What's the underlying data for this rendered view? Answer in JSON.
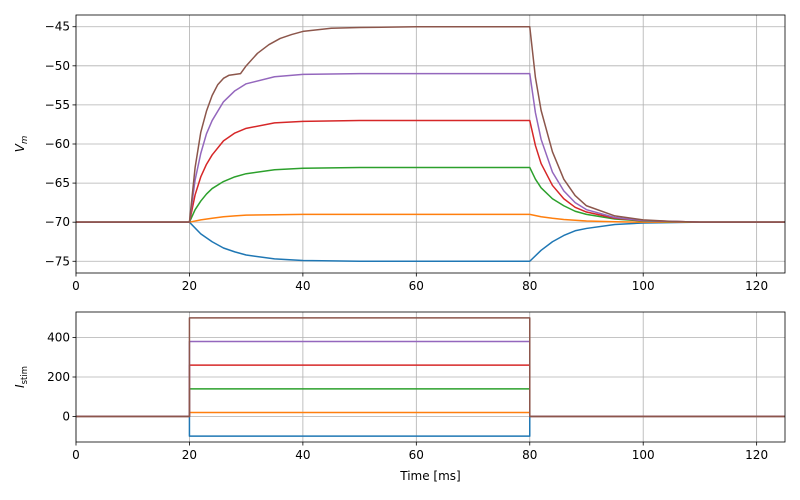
{
  "chart_data": [
    {
      "type": "line",
      "title": "",
      "xlabel": "",
      "ylabel_base": "V",
      "ylabel_sub": "m",
      "xlim": [
        0,
        125
      ],
      "ylim": [
        -76.5,
        -43.5
      ],
      "xticks": [
        0,
        20,
        40,
        60,
        80,
        100,
        120
      ],
      "yticks": [
        -75,
        -70,
        -65,
        -60,
        -55,
        -50,
        -45
      ],
      "ytick_labels": [
        "−75",
        "−70",
        "−65",
        "−60",
        "−55",
        "−50",
        "−45"
      ],
      "grid": true,
      "series": [
        {
          "color": "#1f77b4",
          "points": [
            [
              0,
              -70
            ],
            [
              20,
              -70
            ],
            [
              22,
              -71.5
            ],
            [
              24,
              -72.5
            ],
            [
              26,
              -73.3
            ],
            [
              28,
              -73.8
            ],
            [
              30,
              -74.2
            ],
            [
              35,
              -74.7
            ],
            [
              40,
              -74.9
            ],
            [
              50,
              -75
            ],
            [
              80,
              -75
            ],
            [
              82,
              -73.6
            ],
            [
              84,
              -72.5
            ],
            [
              86,
              -71.7
            ],
            [
              88,
              -71.1
            ],
            [
              90,
              -70.8
            ],
            [
              95,
              -70.3
            ],
            [
              100,
              -70.1
            ],
            [
              110,
              -70
            ],
            [
              125,
              -70
            ]
          ]
        },
        {
          "color": "#ff7f0e",
          "points": [
            [
              0,
              -70
            ],
            [
              20,
              -70
            ],
            [
              22,
              -69.7
            ],
            [
              24,
              -69.5
            ],
            [
              26,
              -69.3
            ],
            [
              28,
              -69.2
            ],
            [
              30,
              -69.1
            ],
            [
              35,
              -69.05
            ],
            [
              40,
              -69
            ],
            [
              80,
              -69
            ],
            [
              82,
              -69.3
            ],
            [
              84,
              -69.5
            ],
            [
              86,
              -69.65
            ],
            [
              88,
              -69.75
            ],
            [
              90,
              -69.85
            ],
            [
              95,
              -69.95
            ],
            [
              100,
              -70
            ],
            [
              125,
              -70
            ]
          ]
        },
        {
          "color": "#2ca02c",
          "points": [
            [
              0,
              -70
            ],
            [
              20,
              -70
            ],
            [
              21,
              -68.4
            ],
            [
              22,
              -67.3
            ],
            [
              23,
              -66.4
            ],
            [
              24,
              -65.7
            ],
            [
              26,
              -64.8
            ],
            [
              28,
              -64.2
            ],
            [
              30,
              -63.8
            ],
            [
              35,
              -63.3
            ],
            [
              40,
              -63.1
            ],
            [
              50,
              -63
            ],
            [
              80,
              -63
            ],
            [
              81,
              -64.5
            ],
            [
              82,
              -65.6
            ],
            [
              84,
              -67
            ],
            [
              86,
              -67.9
            ],
            [
              88,
              -68.6
            ],
            [
              90,
              -69
            ],
            [
              95,
              -69.6
            ],
            [
              100,
              -69.85
            ],
            [
              110,
              -70
            ],
            [
              125,
              -70
            ]
          ]
        },
        {
          "color": "#d62728",
          "points": [
            [
              0,
              -70
            ],
            [
              20,
              -70
            ],
            [
              21,
              -66.5
            ],
            [
              22,
              -64.2
            ],
            [
              23,
              -62.6
            ],
            [
              24,
              -61.4
            ],
            [
              26,
              -59.6
            ],
            [
              28,
              -58.6
            ],
            [
              30,
              -58
            ],
            [
              35,
              -57.3
            ],
            [
              40,
              -57.1
            ],
            [
              50,
              -57
            ],
            [
              80,
              -57
            ],
            [
              81,
              -60.2
            ],
            [
              82,
              -62.5
            ],
            [
              84,
              -65.3
            ],
            [
              86,
              -67
            ],
            [
              88,
              -68.1
            ],
            [
              90,
              -68.7
            ],
            [
              95,
              -69.5
            ],
            [
              100,
              -69.8
            ],
            [
              110,
              -70
            ],
            [
              125,
              -70
            ]
          ]
        },
        {
          "color": "#9467bd",
          "points": [
            [
              0,
              -70
            ],
            [
              20,
              -70
            ],
            [
              21,
              -64.6
            ],
            [
              22,
              -61.2
            ],
            [
              23,
              -58.7
            ],
            [
              24,
              -57
            ],
            [
              26,
              -54.6
            ],
            [
              28,
              -53.2
            ],
            [
              30,
              -52.3
            ],
            [
              35,
              -51.4
            ],
            [
              40,
              -51.1
            ],
            [
              50,
              -51
            ],
            [
              80,
              -51
            ],
            [
              81,
              -56
            ],
            [
              82,
              -59.4
            ],
            [
              84,
              -63.6
            ],
            [
              86,
              -66
            ],
            [
              88,
              -67.5
            ],
            [
              90,
              -68.4
            ],
            [
              95,
              -69.4
            ],
            [
              100,
              -69.8
            ],
            [
              110,
              -70
            ],
            [
              125,
              -70
            ]
          ]
        },
        {
          "color": "#8c564b",
          "points": [
            [
              0,
              -70
            ],
            [
              20,
              -70
            ],
            [
              21,
              -63
            ],
            [
              22,
              -58.5
            ],
            [
              23,
              -55.8
            ],
            [
              24,
              -53.8
            ],
            [
              25,
              -52.4
            ],
            [
              26,
              -51.6
            ],
            [
              27,
              -51.2
            ],
            [
              29,
              -51
            ],
            [
              30,
              -50
            ],
            [
              32,
              -48.4
            ],
            [
              34,
              -47.3
            ],
            [
              36,
              -46.5
            ],
            [
              38,
              -46
            ],
            [
              40,
              -45.6
            ],
            [
              45,
              -45.2
            ],
            [
              50,
              -45.1
            ],
            [
              60,
              -45
            ],
            [
              80,
              -45
            ],
            [
              81,
              -51.5
            ],
            [
              82,
              -55.7
            ],
            [
              84,
              -61
            ],
            [
              86,
              -64.5
            ],
            [
              88,
              -66.6
            ],
            [
              90,
              -67.9
            ],
            [
              95,
              -69.2
            ],
            [
              100,
              -69.7
            ],
            [
              105,
              -69.9
            ],
            [
              110,
              -70
            ],
            [
              125,
              -70
            ]
          ]
        }
      ]
    },
    {
      "type": "line",
      "title": "",
      "xlabel": "Time [ms]",
      "ylabel_base": "I",
      "ylabel_sub": "stim",
      "xlim": [
        0,
        125
      ],
      "ylim": [
        -130,
        530
      ],
      "xticks": [
        0,
        20,
        40,
        60,
        80,
        100,
        120
      ],
      "yticks": [
        0,
        200,
        400
      ],
      "ytick_labels": [
        "0",
        "200",
        "400"
      ],
      "grid": true,
      "series": [
        {
          "color": "#1f77b4",
          "points": [
            [
              0,
              0
            ],
            [
              20,
              0
            ],
            [
              20,
              -100
            ],
            [
              80,
              -100
            ],
            [
              80,
              0
            ],
            [
              125,
              0
            ]
          ]
        },
        {
          "color": "#ff7f0e",
          "points": [
            [
              0,
              0
            ],
            [
              20,
              0
            ],
            [
              20,
              20
            ],
            [
              80,
              20
            ],
            [
              80,
              0
            ],
            [
              125,
              0
            ]
          ]
        },
        {
          "color": "#2ca02c",
          "points": [
            [
              0,
              0
            ],
            [
              20,
              0
            ],
            [
              20,
              140
            ],
            [
              80,
              140
            ],
            [
              80,
              0
            ],
            [
              125,
              0
            ]
          ]
        },
        {
          "color": "#d62728",
          "points": [
            [
              0,
              0
            ],
            [
              20,
              0
            ],
            [
              20,
              260
            ],
            [
              80,
              260
            ],
            [
              80,
              0
            ],
            [
              125,
              0
            ]
          ]
        },
        {
          "color": "#9467bd",
          "points": [
            [
              0,
              0
            ],
            [
              20,
              0
            ],
            [
              20,
              380
            ],
            [
              80,
              380
            ],
            [
              80,
              0
            ],
            [
              125,
              0
            ]
          ]
        },
        {
          "color": "#8c564b",
          "points": [
            [
              0,
              0
            ],
            [
              20,
              0
            ],
            [
              20,
              500
            ],
            [
              80,
              500
            ],
            [
              80,
              0
            ],
            [
              125,
              0
            ]
          ]
        }
      ]
    }
  ]
}
